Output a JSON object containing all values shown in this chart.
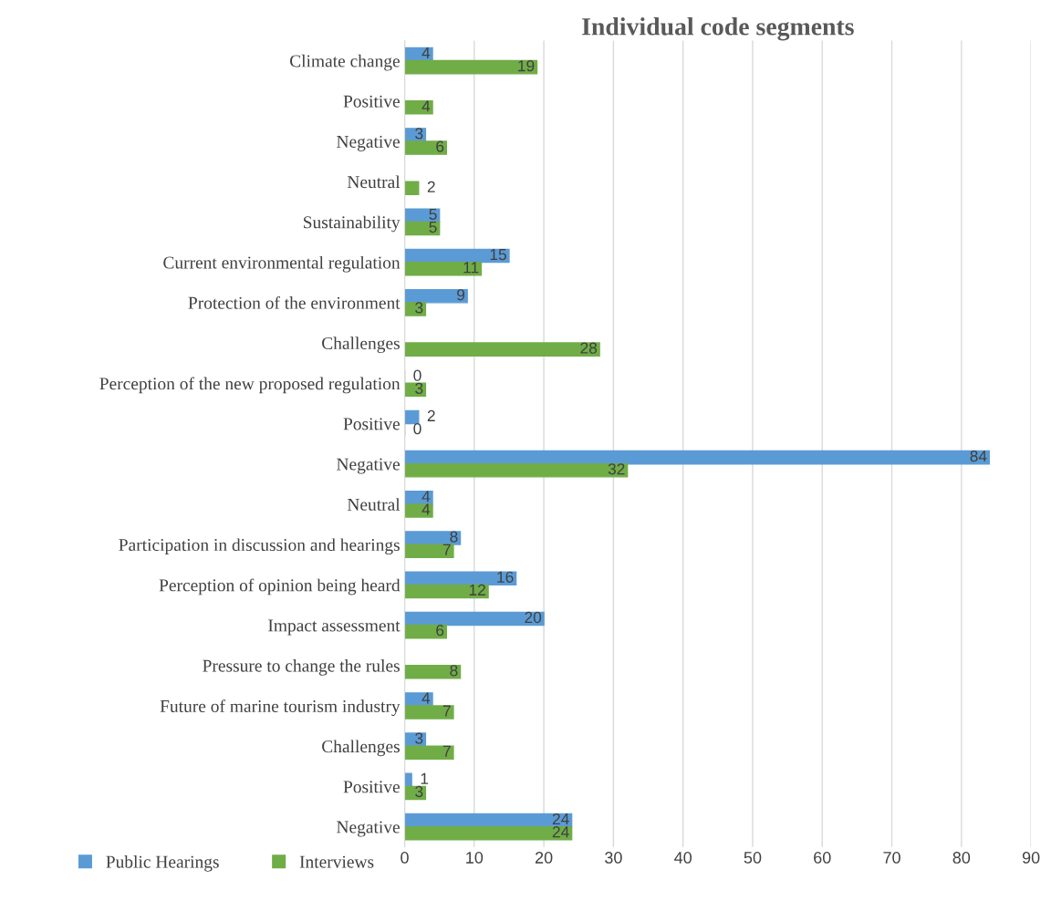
{
  "chart_data": {
    "type": "bar",
    "orientation": "horizontal",
    "title": "Individual code segments",
    "categories": [
      "Climate change",
      "Positive",
      "Negative",
      "Neutral",
      "Sustainability",
      "Current environmental regulation",
      "Protection of the environment",
      "Challenges",
      "Perception of the new proposed regulation",
      "Positive",
      "Negative",
      "Neutral",
      "Participation in discussion and hearings",
      "Perception of opinion being heard",
      "Impact assessment",
      "Pressure to change the rules",
      "Future of marine tourism industry",
      "Challenges",
      "Positive",
      "Negative"
    ],
    "series": [
      {
        "name": "Public Hearings",
        "color": "#5b9bd5",
        "values": [
          4,
          null,
          3,
          null,
          5,
          15,
          9,
          null,
          0,
          2,
          84,
          4,
          8,
          16,
          20,
          null,
          4,
          3,
          1,
          24
        ]
      },
      {
        "name": "Interviews",
        "color": "#70ad47",
        "values": [
          19,
          4,
          6,
          2,
          5,
          11,
          3,
          28,
          3,
          0,
          32,
          4,
          7,
          12,
          6,
          8,
          7,
          7,
          3,
          24
        ]
      }
    ],
    "xlim": [
      0,
      90
    ],
    "xticks": [
      0,
      10,
      20,
      30,
      40,
      50,
      60,
      70,
      80,
      90
    ],
    "grid": "x",
    "legend": "bottom left",
    "data_labels": true
  }
}
